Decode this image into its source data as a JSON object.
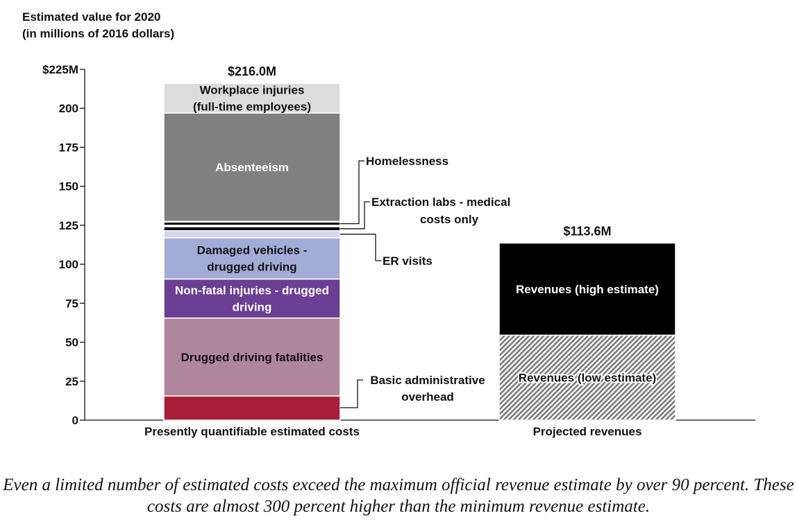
{
  "chart_data": {
    "type": "bar",
    "stacked": true,
    "title": "Estimated value for 2020",
    "subtitle": "(in millions of 2016 dollars)",
    "ylim": [
      0,
      225
    ],
    "y_ticks": [
      0,
      25,
      50,
      75,
      100,
      125,
      150,
      175,
      200,
      225
    ],
    "y_tick_labels": [
      "0",
      "25",
      "50",
      "75",
      "100",
      "125",
      "150",
      "175",
      "200",
      "$225M"
    ],
    "grid": false,
    "categories": [
      "Presently quantifiable estimated costs",
      "Projected revenues"
    ],
    "totals": [
      "$216.0M",
      "$113.6M"
    ],
    "stacks": [
      {
        "category": "Presently quantifiable estimated costs",
        "segments": [
          {
            "name": "Basic administrative overhead",
            "label_lines": [
              "Basic administrative",
              "overhead"
            ],
            "from": 0,
            "to": 15.5,
            "color": "#a81f37",
            "label_side": "outside"
          },
          {
            "name": "Drugged driving fatalities",
            "label_lines": [
              "Drugged driving fatalities"
            ],
            "from": 15.5,
            "to": 65.5,
            "color": "#b0869c",
            "label_side": "inside",
            "text_color": "#111111"
          },
          {
            "name": "Non-fatal injuries - drugged driving",
            "label_lines": [
              "Non-fatal injuries - drugged",
              "driving"
            ],
            "from": 65.5,
            "to": 90.5,
            "color": "#6b3f93",
            "label_side": "inside",
            "text_color": "#ffffff"
          },
          {
            "name": "Damaged vehicles - drugged driving",
            "label_lines": [
              "Damaged vehicles -",
              "drugged driving"
            ],
            "from": 90.5,
            "to": 117,
            "color": "#a3acd6",
            "label_side": "inside",
            "text_color": "#111111"
          },
          {
            "name": "ER visits",
            "label_lines": [
              "ER visits"
            ],
            "from": 117,
            "to": 121.5,
            "color": "#d2d5ee",
            "label_side": "outside"
          },
          {
            "name": "Extraction labs - medical costs only",
            "label_lines": [
              "Extraction labs - medical",
              "costs only"
            ],
            "from": 121.5,
            "to": 124,
            "color": "#000000",
            "label_side": "outside"
          },
          {
            "name": "Homelessness",
            "label_lines": [
              "Homelessness"
            ],
            "from": 125,
            "to": 127,
            "color": "#000000",
            "label_side": "outside"
          },
          {
            "name": "Absenteeism",
            "label_lines": [
              "Absenteeism"
            ],
            "from": 127.5,
            "to": 197,
            "color": "#808080",
            "label_side": "inside",
            "text_color": "#ffffff"
          },
          {
            "name": "Workplace injuries (full-time employees)",
            "label_lines": [
              "Workplace injuries",
              "(full-time employees)"
            ],
            "from": 197,
            "to": 216,
            "color": "#dcdcdc",
            "label_side": "inside",
            "text_color": "#111111"
          }
        ]
      },
      {
        "category": "Projected revenues",
        "segments": [
          {
            "name": "Revenues (low estimate)",
            "label_lines": [
              "Revenues (low estimate)"
            ],
            "from": 0,
            "to": 54.5,
            "color": "#777777",
            "pattern": "hatch",
            "label_side": "inside",
            "text_color": "#111111"
          },
          {
            "name": "Revenues (high estimate)",
            "label_lines": [
              "Revenues (high estimate)"
            ],
            "from": 54.5,
            "to": 113.6,
            "color": "#000000",
            "label_side": "inside",
            "text_color": "#ffffff"
          }
        ]
      }
    ]
  },
  "caption": "Even a limited number of estimated costs exceed the maximum official revenue estimate by over 90 percent. These costs are almost 300 percent higher than the minimum revenue estimate."
}
